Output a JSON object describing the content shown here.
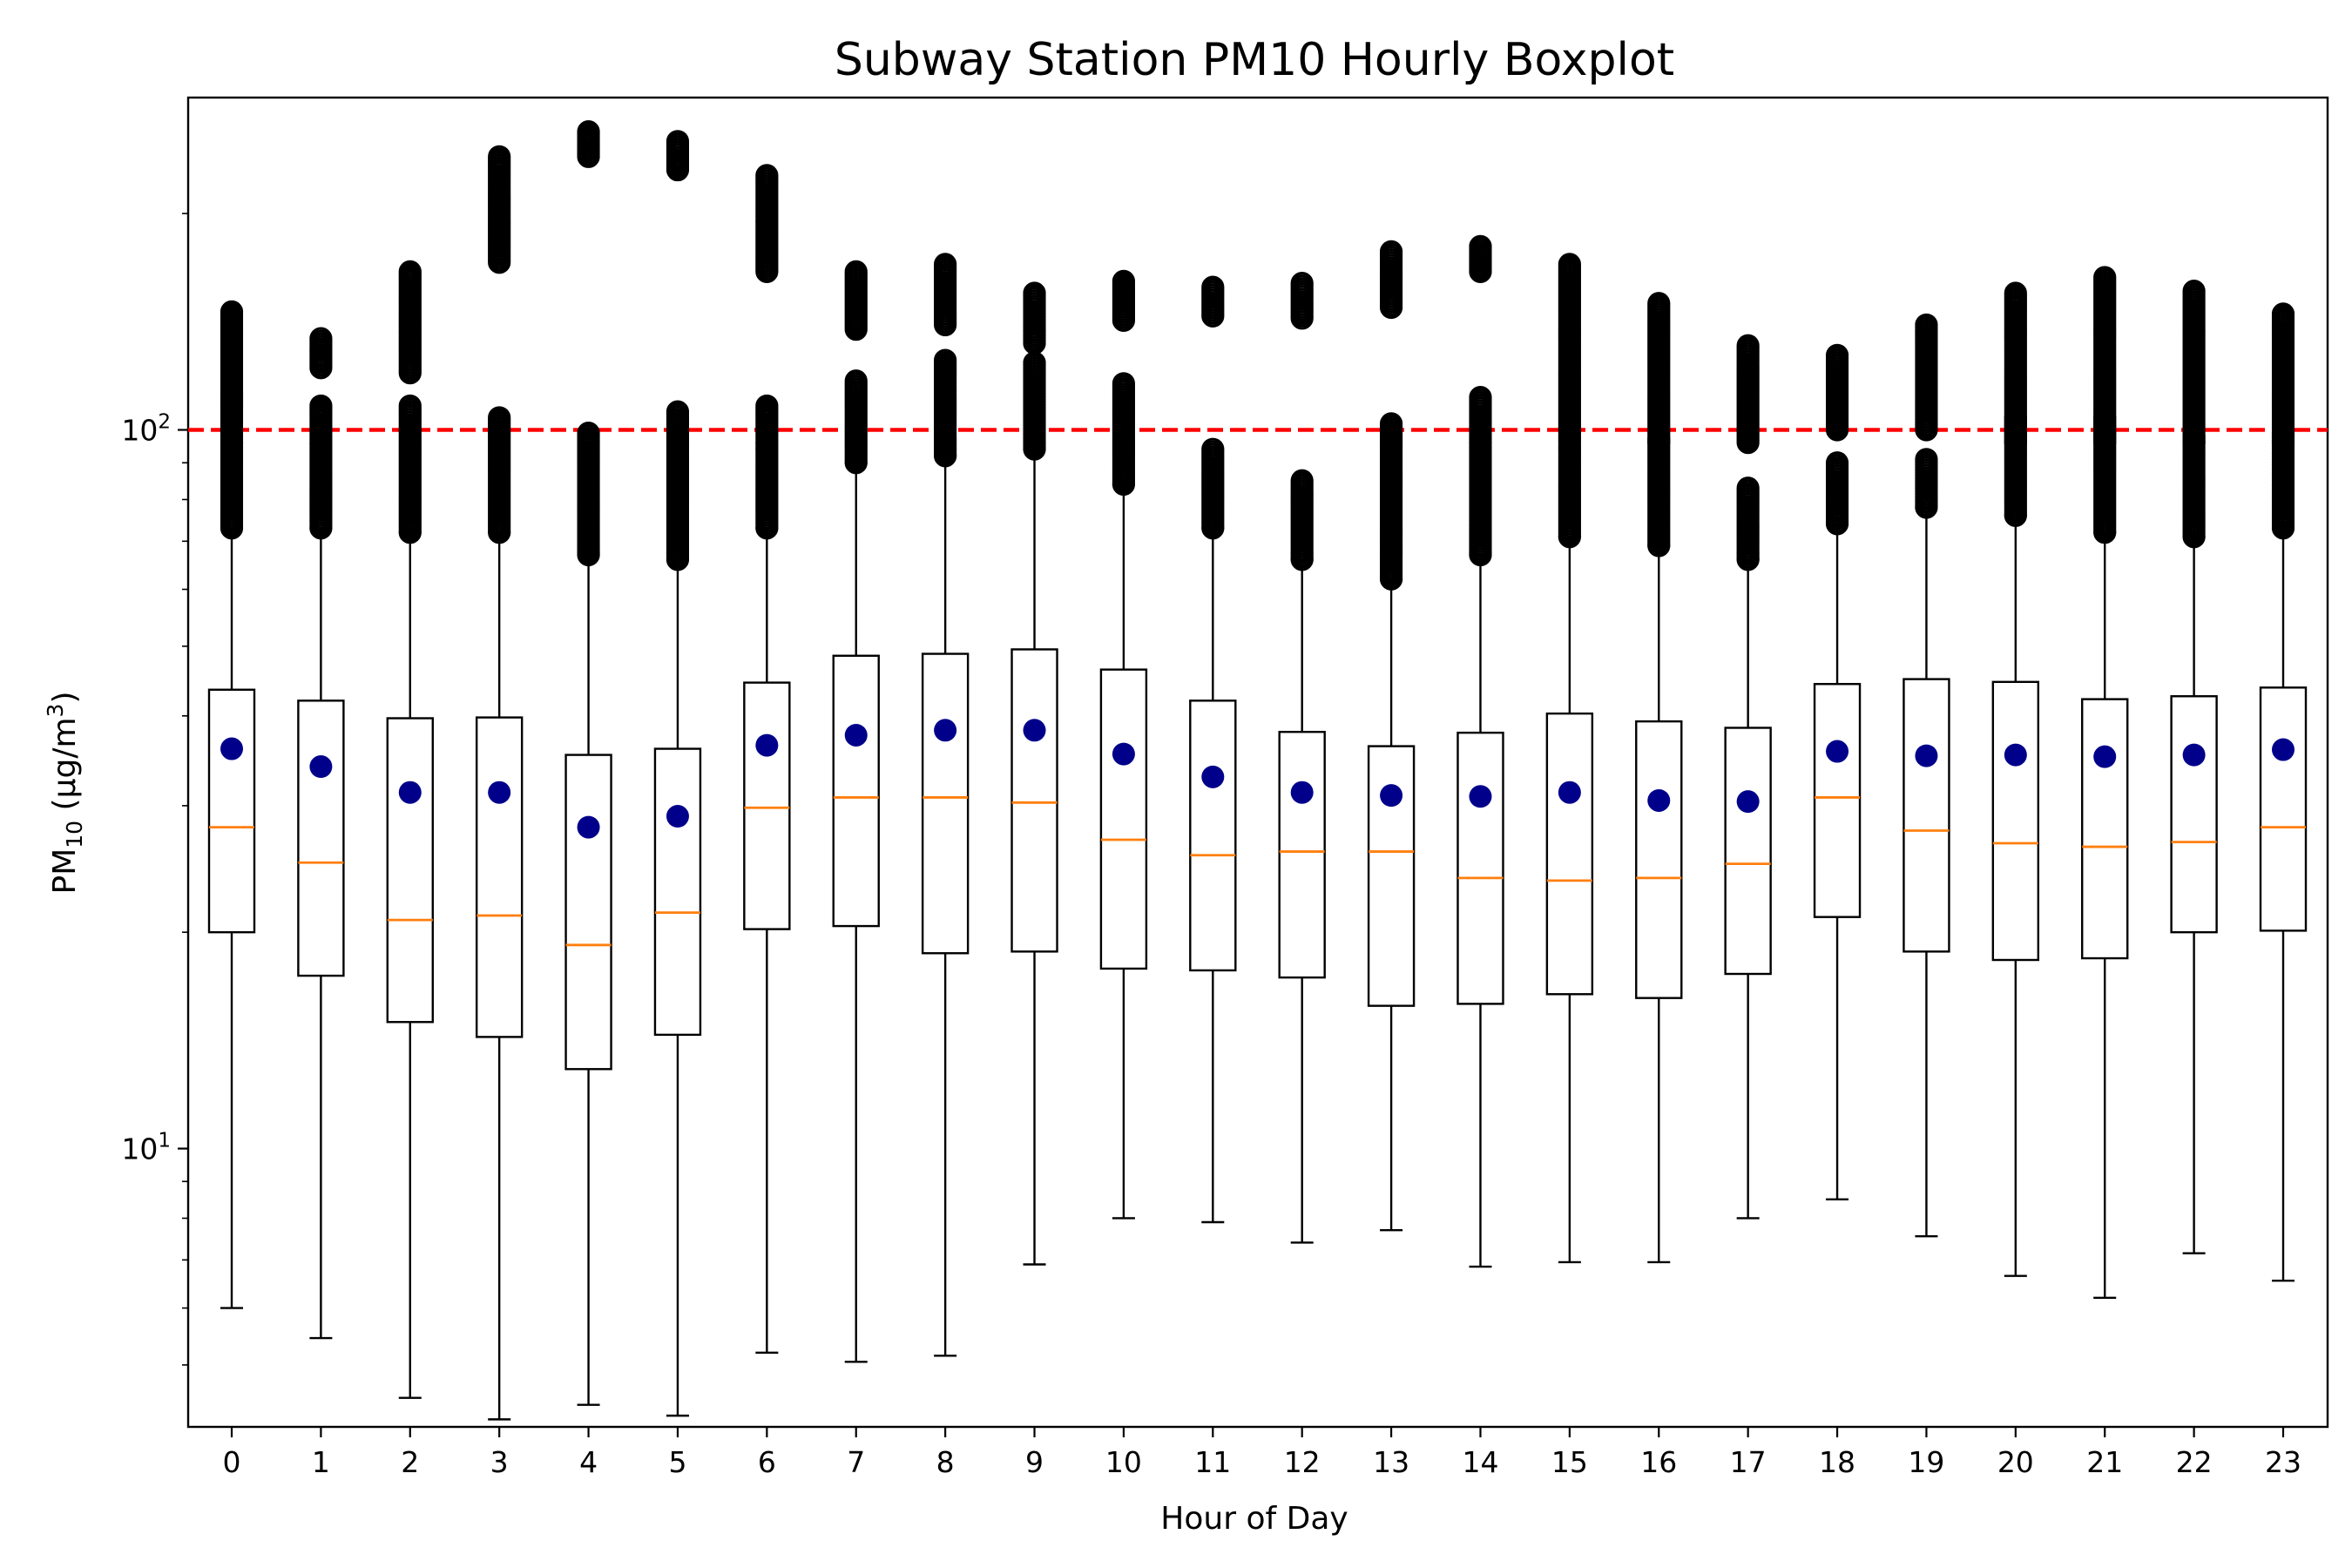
{
  "chart_data": {
    "type": "boxplot",
    "title": "Subway Station PM10 Hourly Boxplot",
    "xlabel": "Hour of Day",
    "ylabel": {
      "base": "PM",
      "sub": "10",
      "units_open": " (μg/m",
      "units_sup": "3",
      "units_close": ")"
    },
    "yscale": "log",
    "ylim": [
      4.1,
      290
    ],
    "y_ticks": [
      {
        "value": 10,
        "base": "10",
        "exp": "1"
      },
      {
        "value": 100,
        "base": "10",
        "exp": "2"
      }
    ],
    "threshold": {
      "value": 100,
      "color": "#ff0000",
      "style": "dashed"
    },
    "colors": {
      "box": "#000000",
      "median": "#ff7f0e",
      "mean": "#00008b",
      "flier": "#000000"
    },
    "categories": [
      "0",
      "1",
      "2",
      "3",
      "4",
      "5",
      "6",
      "7",
      "8",
      "9",
      "10",
      "11",
      "12",
      "13",
      "14",
      "15",
      "16",
      "17",
      "18",
      "19",
      "20",
      "21",
      "22",
      "23"
    ],
    "series": [
      {
        "whislo": [
          6.0,
          5.45,
          4.5,
          4.2,
          4.4,
          4.25,
          5.2,
          5.05,
          5.15,
          6.9,
          8.0,
          7.9,
          7.4,
          7.7,
          6.85,
          6.95,
          6.95,
          8.0,
          8.5,
          7.55,
          6.65,
          6.2,
          7.15,
          6.55
        ],
        "q1": [
          20.0,
          17.4,
          15.0,
          14.3,
          12.9,
          14.4,
          20.2,
          20.4,
          18.7,
          18.8,
          17.8,
          17.7,
          17.3,
          15.8,
          15.9,
          16.4,
          16.2,
          17.5,
          21.0,
          18.8,
          18.3,
          18.4,
          20.0,
          20.1
        ],
        "median": [
          28.0,
          25.0,
          20.8,
          21.1,
          19.2,
          21.3,
          29.8,
          30.8,
          30.8,
          30.3,
          26.9,
          25.6,
          25.9,
          25.9,
          23.8,
          23.6,
          23.8,
          24.9,
          30.8,
          27.7,
          26.6,
          26.3,
          26.7,
          28.0
        ],
        "q3": [
          43.5,
          42.0,
          39.7,
          39.8,
          35.3,
          36.0,
          44.5,
          48.5,
          48.8,
          49.5,
          46.4,
          42.0,
          38.0,
          36.3,
          37.9,
          40.3,
          39.3,
          38.5,
          44.3,
          45.0,
          44.6,
          42.2,
          42.6,
          43.8
        ],
        "whishi": [
          73.0,
          73.0,
          72.0,
          72.0,
          67.0,
          66.0,
          73.0,
          90.0,
          92.0,
          94.0,
          84.0,
          73.0,
          66.0,
          62.0,
          67.0,
          71.0,
          69.0,
          66.0,
          74.0,
          78.0,
          76.0,
          72.0,
          71.0,
          73.0
        ],
        "mean": [
          36.0,
          34.0,
          31.3,
          31.3,
          28.0,
          29.0,
          36.4,
          37.6,
          38.2,
          38.2,
          35.4,
          32.9,
          31.3,
          31.0,
          30.9,
          31.3,
          30.5,
          30.4,
          35.7,
          35.2,
          35.3,
          35.1,
          35.3,
          35.9
        ],
        "fliers_low": [
          [
            73.0,
            112.0
          ],
          [
            73.0,
            108.0
          ],
          [
            72.0,
            108.0
          ],
          [
            72.0,
            104.0
          ],
          [
            67.0,
            99.0
          ],
          [
            66.0,
            106.0
          ],
          [
            73.0,
            108.0
          ],
          [
            90.0,
            117.0
          ],
          [
            92.0,
            125.0
          ],
          [
            94.0,
            124.0
          ],
          [
            84.0,
            116.0
          ],
          [
            73.0,
            94.0
          ],
          [
            66.0,
            85.0
          ],
          [
            62.0,
            102.0
          ],
          [
            67.0,
            111.0
          ],
          [
            71.0,
            95.0
          ],
          [
            69.0,
            97.0
          ],
          [
            66.0,
            83.0
          ],
          [
            74.0,
            90.0
          ],
          [
            78.0,
            91.0
          ],
          [
            76.0,
            104.0
          ],
          [
            72.0,
            104.0
          ],
          [
            71.0,
            98.0
          ],
          [
            73.0,
            99.0
          ]
        ],
        "fliers_high": [
          [
            108.0,
            146.0
          ],
          [
            122.0,
            134.0
          ],
          [
            120.0,
            166.0
          ],
          [
            171.0,
            240.0
          ],
          [
            240.0,
            260.0
          ],
          [
            230.0,
            252.0
          ],
          [
            166.0,
            226.0
          ],
          [
            138.0,
            166.0
          ],
          [
            140.0,
            170.0
          ],
          [
            132.0,
            155.0
          ],
          [
            142.0,
            161.0
          ],
          [
            144.0,
            158.0
          ],
          [
            143.0,
            160.0
          ],
          [
            148.0,
            177.0
          ],
          [
            166.0,
            180.0
          ],
          [
            96.0,
            170.0
          ],
          [
            96.0,
            150.0
          ],
          [
            96.0,
            131.0
          ],
          [
            100.0,
            127.0
          ],
          [
            100.0,
            140.0
          ],
          [
            96.0,
            155.0
          ],
          [
            96.0,
            163.0
          ],
          [
            96.0,
            156.0
          ],
          [
            96.0,
            145.0
          ]
        ]
      }
    ]
  }
}
